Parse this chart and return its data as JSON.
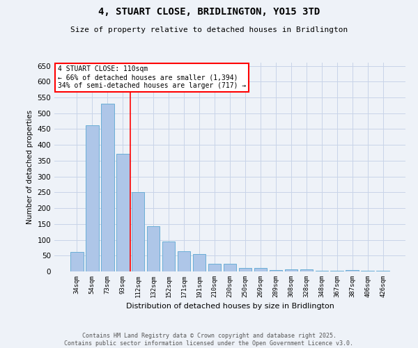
{
  "title_line1": "4, STUART CLOSE, BRIDLINGTON, YO15 3TD",
  "title_line2": "Size of property relative to detached houses in Bridlington",
  "xlabel": "Distribution of detached houses by size in Bridlington",
  "ylabel": "Number of detached properties",
  "categories": [
    "34sqm",
    "54sqm",
    "73sqm",
    "93sqm",
    "112sqm",
    "132sqm",
    "152sqm",
    "171sqm",
    "191sqm",
    "210sqm",
    "230sqm",
    "250sqm",
    "269sqm",
    "289sqm",
    "308sqm",
    "328sqm",
    "348sqm",
    "367sqm",
    "387sqm",
    "406sqm",
    "426sqm"
  ],
  "values": [
    62,
    462,
    530,
    372,
    250,
    142,
    95,
    63,
    55,
    25,
    25,
    10,
    10,
    5,
    7,
    7,
    3,
    3,
    5,
    3,
    3
  ],
  "bar_color": "#aec6e8",
  "bar_edge_color": "#6aaed6",
  "property_line_label": "4 STUART CLOSE: 110sqm",
  "annotation_line1": "← 66% of detached houses are smaller (1,394)",
  "annotation_line2": "34% of semi-detached houses are larger (717) →",
  "annotation_box_color": "white",
  "annotation_box_edge_color": "red",
  "line_color": "red",
  "ylim": [
    0,
    660
  ],
  "yticks": [
    0,
    50,
    100,
    150,
    200,
    250,
    300,
    350,
    400,
    450,
    500,
    550,
    600,
    650
  ],
  "footer_line1": "Contains HM Land Registry data © Crown copyright and database right 2025.",
  "footer_line2": "Contains public sector information licensed under the Open Government Licence v3.0.",
  "bg_color": "#eef2f8",
  "grid_color": "#c8d4e8"
}
